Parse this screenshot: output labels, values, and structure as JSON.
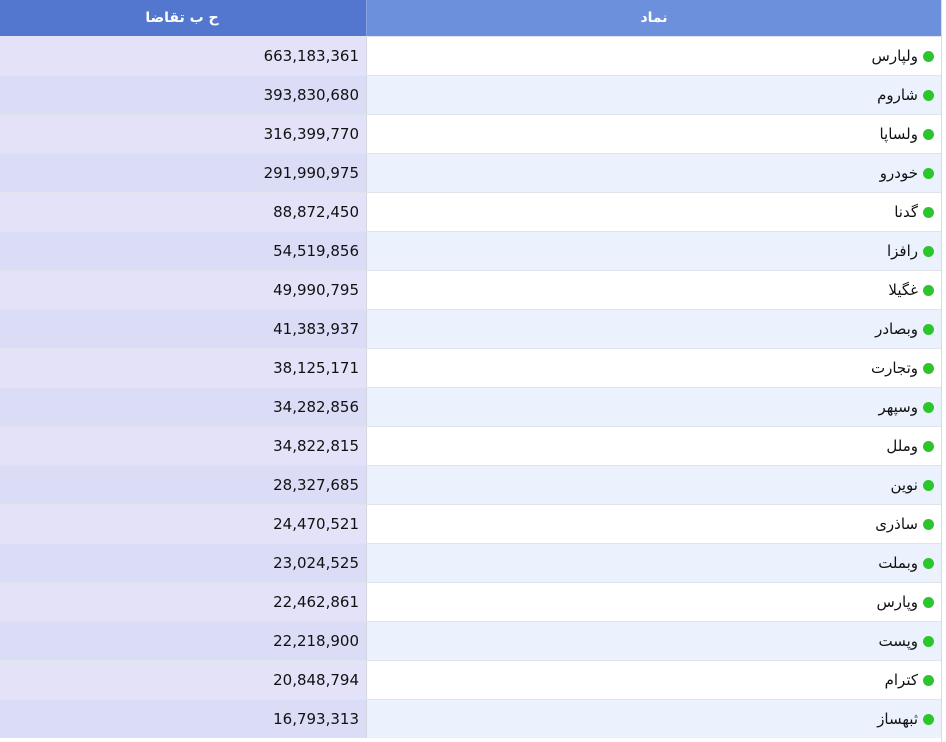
{
  "header": {
    "volume_label": "ح ب تقاضا",
    "symbol_label": "نماد"
  },
  "status_color": "#2dc52d",
  "rows": [
    {
      "symbol": "ولپارس",
      "volume": "663,183,361"
    },
    {
      "symbol": "شاروم",
      "volume": "393,830,680"
    },
    {
      "symbol": "ولساپا",
      "volume": "316,399,770"
    },
    {
      "symbol": "خودرو",
      "volume": "291,990,975"
    },
    {
      "symbol": "گدنا",
      "volume": "88,872,450"
    },
    {
      "symbol": "رافزا",
      "volume": "54,519,856"
    },
    {
      "symbol": "غگیلا",
      "volume": "49,990,795"
    },
    {
      "symbol": "وبصادر",
      "volume": "41,383,937"
    },
    {
      "symbol": "وتجارت",
      "volume": "38,125,171"
    },
    {
      "symbol": "وسپهر",
      "volume": "34,282,856"
    },
    {
      "symbol": "وملل",
      "volume": "34,822,815"
    },
    {
      "symbol": "نوین",
      "volume": "28,327,685"
    },
    {
      "symbol": "ساذری",
      "volume": "24,470,521"
    },
    {
      "symbol": "وبملت",
      "volume": "23,024,525"
    },
    {
      "symbol": "وپارس",
      "volume": "22,462,861"
    },
    {
      "symbol": "وپست",
      "volume": "22,218,900"
    },
    {
      "symbol": "کترام",
      "volume": "20,848,794"
    },
    {
      "symbol": "ثبهساز",
      "volume": "16,793,313"
    }
  ]
}
